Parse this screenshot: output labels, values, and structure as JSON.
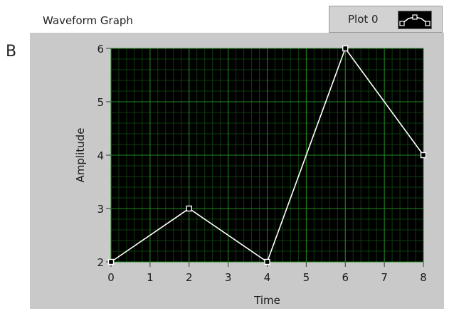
{
  "panel_label": "B",
  "graph": {
    "title": "Waveform Graph",
    "legend": {
      "name": "Plot 0",
      "icon": "line-with-square-points-icon"
    }
  },
  "colors": {
    "plot_background": "#000000",
    "major_grid": "#1f8a1f",
    "minor_grid": "#0e3c0e",
    "trace": "#ffffff",
    "frame": "#c9c9c9"
  },
  "chart_data": {
    "type": "line",
    "title": "",
    "xlabel": "Time",
    "ylabel": "Amplitude",
    "xlim": [
      0,
      8
    ],
    "ylim": [
      2,
      6
    ],
    "xticks": [
      0,
      1,
      2,
      3,
      4,
      5,
      6,
      7,
      8
    ],
    "yticks": [
      2,
      3,
      4,
      5,
      6
    ],
    "grid": true,
    "series": [
      {
        "name": "Plot 0",
        "x": [
          0,
          2,
          4,
          6,
          8
        ],
        "y": [
          2,
          3,
          2,
          6,
          4
        ]
      }
    ]
  }
}
